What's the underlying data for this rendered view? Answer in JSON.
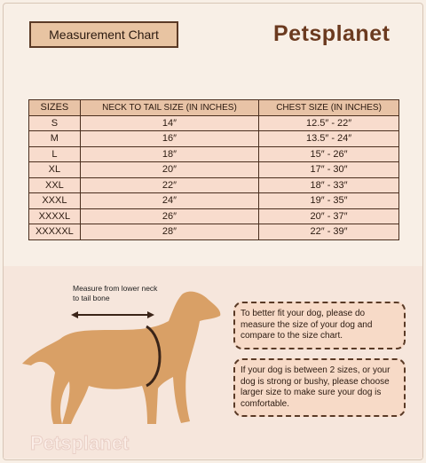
{
  "header": {
    "badge": "Measurement Chart",
    "brand": "Petsplanet"
  },
  "table": {
    "headers": [
      "SIZES",
      "NECK TO TAIL SIZE (IN INCHES)",
      "CHEST SIZE (IN INCHES)"
    ],
    "rows": [
      [
        "S",
        "14″",
        "12.5″ - 22″"
      ],
      [
        "M",
        "16″",
        "13.5″ - 24″"
      ],
      [
        "L",
        "18″",
        "15″ - 26″"
      ],
      [
        "XL",
        "20″",
        "17″ - 30″"
      ],
      [
        "XXL",
        "22″",
        "18″ - 33″"
      ],
      [
        "XXXL",
        "24″",
        "19″ - 35″"
      ],
      [
        "XXXXL",
        "26″",
        "20″ - 37″"
      ],
      [
        "XXXXXL",
        "28″",
        "22″ - 39″"
      ]
    ]
  },
  "diagram": {
    "label": "Measure from lower neck to tail bone"
  },
  "notes": [
    "To better fit your dog, please do measure the size of your dog and compare to the size chart.",
    "If your dog is between 2 sizes, or your dog is strong or bushy, please choose larger size to make sure your dog is comfortable."
  ],
  "watermark": "Petsplanet"
}
